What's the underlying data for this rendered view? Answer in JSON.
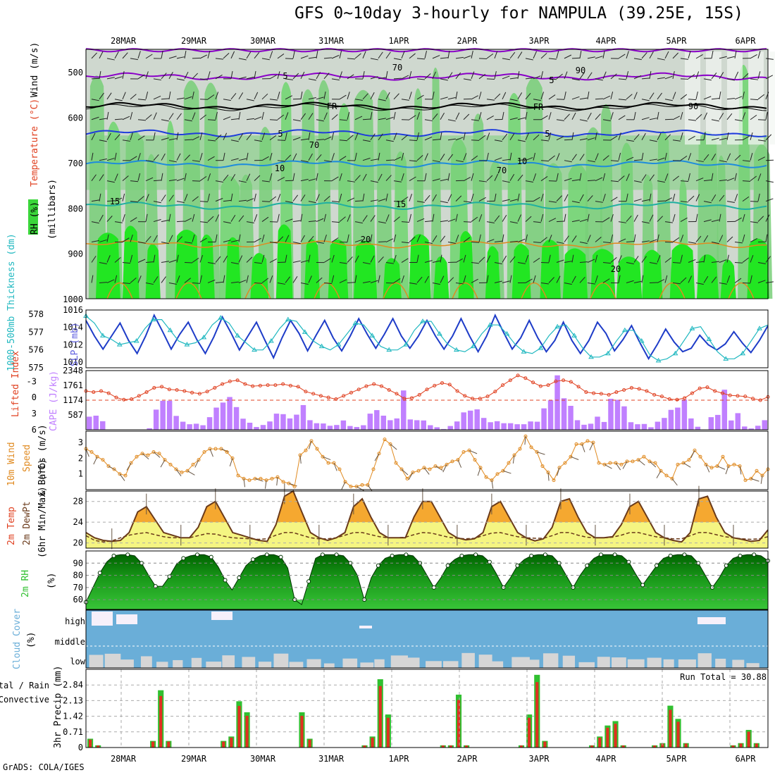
{
  "title": "GFS 0~10day 3-hourly for NAMPULA (39.25E, 15S)",
  "credit": "GrADS: COLA/IGES",
  "chart_data": {
    "type": "meteogram",
    "dates": [
      "28MAR",
      "29MAR",
      "30MAR",
      "31MAR",
      "1APR",
      "2APR",
      "3APR",
      "4APR",
      "5APR",
      "6APR"
    ],
    "colors": {
      "purple": "#8a00c8",
      "blue": "#1e3cdc",
      "lightblue": "#1e8cdc",
      "teal": "#20b0a0",
      "orange": "#e08a20",
      "red": "#e04020",
      "cyan": "#20b8c0",
      "darkblue": "#1e3cc8",
      "magenta": "#c080ff",
      "green": "#30c030",
      "cloud": "#6aaed8",
      "rain": "#e03020",
      "precip": "#30c030"
    },
    "panels": [
      {
        "name": "upper-air",
        "type": "contour",
        "ylabels": {
          "rh": "RH (%)",
          "temperature": "Temperature (°C)",
          "wind": "Wind (m/s)",
          "units": "(millibars)"
        },
        "yticks": [
          500,
          600,
          700,
          800,
          900,
          1000
        ],
        "contour_labels": [
          {
            "text": "5",
            "level": 508
          },
          {
            "text": "5",
            "level": 520
          },
          {
            "text": "FR",
            "level": 577
          },
          {
            "text": "FR",
            "level": 578
          },
          {
            "text": "5",
            "level": 633
          },
          {
            "text": "5",
            "level": 635
          },
          {
            "text": "10",
            "level": 708
          },
          {
            "text": "10",
            "level": 699
          },
          {
            "text": "15",
            "level": 790
          },
          {
            "text": "15",
            "level": 796
          },
          {
            "text": "20",
            "level": 870
          },
          {
            "text": "20",
            "level": 920
          },
          {
            "text": "70",
            "level": 491
          },
          {
            "text": "70",
            "level": 664
          },
          {
            "text": "90",
            "level": 499
          },
          {
            "text": "90",
            "level": 582
          },
          {
            "text": "70",
            "level": 717
          }
        ]
      },
      {
        "name": "slp-thickness",
        "type": "line",
        "ylabels": {
          "thickness": "1000-500mb Thickness (dm)",
          "slp": "SLP (mb)"
        },
        "thickness_ticks": [
          575,
          576,
          577,
          578
        ],
        "slp_ticks": [
          1010,
          1012,
          1014,
          1016
        ],
        "slp": [
          1014.8,
          1013,
          1011.5,
          1013,
          1014.5,
          1012.5,
          1011,
          1013,
          1015.4,
          1013.5,
          1011.5,
          1013.2,
          1014.6,
          1012.6,
          1011,
          1012.9,
          1015.2,
          1013.4,
          1011.4,
          1013,
          1014.6,
          1012.5,
          1010.5,
          1012.8,
          1014.8,
          1013.3,
          1011.3,
          1013.1,
          1014.8,
          1012.8,
          1011.3,
          1013,
          1015,
          1013.2,
          1011.6,
          1013.2,
          1015,
          1013,
          1011.6,
          1013,
          1014.8,
          1013,
          1011.5,
          1013,
          1015,
          1013,
          1011.2,
          1013,
          1015.4,
          1013.4,
          1011.5,
          1012.8,
          1014.8,
          1012.8,
          1011.2,
          1012.5,
          1014.6,
          1012.5,
          1011,
          1012.5,
          1014.6,
          1013.3,
          1011.3,
          1012.6,
          1014.2,
          1012.2,
          1010.4,
          1012,
          1013.8,
          1012.3,
          1011.2,
          1011.6,
          1013.1,
          1012,
          1011.4,
          1012.1,
          1013.5,
          1012.2,
          1011.1,
          1012.5,
          1014.2
        ],
        "thickness": [
          577.9,
          577.5,
          576.8,
          576.6,
          576.3,
          576.4,
          576.5,
          577.2,
          577.7,
          577.7,
          577.1,
          576.5,
          576.3,
          576.4,
          576.7,
          577.4,
          577.8,
          577.5,
          576.8,
          576.4,
          576,
          576,
          576.5,
          577.2,
          577.7,
          577.6,
          577,
          576.5,
          576.2,
          576,
          576.3,
          576.9,
          577.5,
          577.4,
          576.8,
          576.2,
          576,
          576,
          576.3,
          577.1,
          577.6,
          577.6,
          576.9,
          576.3,
          576,
          575.9,
          576.2,
          576.9,
          577.4,
          577.4,
          576.9,
          576.3,
          575.9,
          575.8,
          576.1,
          576.8,
          577.3,
          577.4,
          576.8,
          576.1,
          575.6,
          575.6,
          575.8,
          576.5,
          577.1,
          577.1,
          576.5,
          575.7,
          575.4,
          575.5,
          575.8,
          576.5,
          577.2,
          577.3,
          576.6,
          575.9,
          575.5,
          575.5,
          575.8,
          576.5,
          577.2,
          577.4
        ]
      },
      {
        "name": "stability",
        "type": "bar+line",
        "ylabels": {
          "li": "Lifted Index",
          "cape": "CAPE (J/kg)"
        },
        "li_ticks": [
          "-3",
          "0",
          "3",
          "6"
        ],
        "cape_ticks": [
          587,
          1174,
          1761,
          2348
        ],
        "li": [
          -1.2,
          -1,
          -1.2,
          -0.8,
          0,
          0.4,
          0.3,
          -0.3,
          -1,
          -1.8,
          -2,
          -1.5,
          -1.4,
          -1.2,
          -0.9,
          -0.7,
          -1.1,
          -1.8,
          -2.5,
          -3,
          -3.2,
          -2.5,
          -2.1,
          -2.2,
          -2.3,
          -2.3,
          -2.5,
          -2.2,
          -2,
          -1.1,
          -0.7,
          -0.3,
          0,
          0.3,
          -0.3,
          -0.9,
          -1.5,
          -2.1,
          -2.5,
          -2.1,
          -1.4,
          -0.7,
          0.2,
          0.1,
          -0.5,
          -1.5,
          -2.2,
          -2.7,
          -2.4,
          -1.2,
          -0.3,
          0.2,
          0.2,
          -0.2,
          -1.1,
          -2.3,
          -3.2,
          -4.1,
          -3.6,
          -2.8,
          -2.1,
          -2.3,
          -3,
          -3.2,
          -2.9,
          -2,
          -1,
          -0.8,
          -0.7,
          -0.5,
          -1,
          -1.4,
          -1.8,
          -1.6,
          -1.2,
          -0.5,
          -0.2,
          0.3,
          0.4,
          0.1,
          -0.8,
          -1.7,
          -1.9,
          -1.2,
          -0.8,
          -0.4,
          -0.3,
          -0.2,
          0.2,
          0.5,
          -0.1
        ],
        "cape": [
          520,
          560,
          340,
          0,
          0,
          0,
          0,
          0,
          0,
          60,
          800,
          1150,
          1150,
          550,
          320,
          220,
          240,
          180,
          500,
          880,
          1080,
          1300,
          900,
          440,
          280,
          110,
          190,
          330,
          640,
          620,
          450,
          600,
          980,
          380,
          260,
          250,
          160,
          190,
          370,
          150,
          110,
          180,
          640,
          780,
          560,
          380,
          450,
          1560,
          410,
          380,
          370,
          180,
          100,
          30,
          150,
          330,
          690,
          760,
          810,
          470,
          300,
          340,
          260,
          260,
          220,
          220,
          330,
          320,
          850,
          1170,
          2160,
          1250,
          950,
          380,
          200,
          240,
          520,
          310,
          1230,
          1190,
          930,
          300,
          220,
          230,
          100,
          320,
          470,
          790,
          880,
          1200,
          450,
          120,
          0,
          500,
          590,
          1590,
          370,
          660,
          130,
          50,
          160,
          380
        ],
        "threshold": 1174
      },
      {
        "name": "wind",
        "type": "line",
        "ylabels": {
          "wind": "10m Wind Speed & Barbs (m/s)"
        },
        "ticks": [
          1,
          2,
          3
        ],
        "values": [
          2.6,
          2.4,
          2.1,
          1.9,
          1.5,
          1.3,
          1,
          0.9,
          1.7,
          2.1,
          2.3,
          2.2,
          2.4,
          2.3,
          1.9,
          1.6,
          1.3,
          1.1,
          1.2,
          1.6,
          1.9,
          2.4,
          2.6,
          2.6,
          2.6,
          2.4,
          2,
          0.9,
          0.7,
          0.6,
          0.7,
          0.7,
          0.6,
          0.7,
          0.8,
          0.5,
          0.4,
          0.2,
          2.2,
          2.5,
          3.1,
          2.6,
          2.1,
          1.7,
          1.7,
          1.3,
          0.5,
          0.2,
          0.2,
          0.3,
          0.3,
          1.3,
          2.3,
          3.2,
          2.9,
          1.7,
          1.3,
          0.7,
          1.1,
          1.2,
          1.4,
          1.3,
          1.5,
          1.4,
          1.6,
          1.8,
          1.9,
          2.4,
          2.5,
          1.9,
          1.4,
          0.8,
          0.6,
          1,
          1.2,
          1.7,
          2.2,
          2.6,
          3.4,
          2.7,
          2.4,
          1.5,
          1.1,
          0.6,
          1.4,
          1.7,
          2.1,
          2.9,
          2.9,
          3.1,
          3,
          1.7,
          1.6,
          1.7,
          1.7,
          1.6,
          1.8,
          1.8,
          1.9,
          2.1,
          1.8,
          1.7,
          1.2,
          0.9,
          0.7,
          1.6,
          1.7,
          1.9,
          2.5,
          2.1,
          1.6,
          1.4,
          1.5,
          2.1,
          1.5,
          1.6,
          1.5,
          0.6,
          0.7,
          1.2,
          0.9,
          1.3
        ]
      },
      {
        "name": "temperature",
        "type": "area",
        "ylabels": {
          "temp": "2m Temp",
          "dewpt": "2m DewPt",
          "minmax": "(6hr Min/Max) (°C)"
        },
        "ticks": [
          20,
          24,
          28
        ],
        "temp": [
          22,
          21,
          20.5,
          20.3,
          20.5,
          22,
          26,
          27,
          24.5,
          22,
          21.5,
          21,
          21,
          23,
          27,
          28,
          25,
          22,
          21.5,
          21,
          20.5,
          20.3,
          23.5,
          29,
          30,
          26,
          22,
          21,
          20.5,
          21,
          22,
          27,
          28.5,
          25,
          22,
          21,
          21,
          21,
          25,
          28,
          28,
          25,
          22,
          21,
          20.6,
          20.8,
          22,
          27,
          28,
          25,
          22,
          21,
          20.4,
          20.8,
          23,
          28,
          28.5,
          25,
          22,
          21,
          21,
          21.2,
          23.5,
          27,
          28,
          25,
          22,
          21,
          20.5,
          20.2,
          22,
          28.5,
          29,
          25,
          22,
          21,
          20.7,
          20.3,
          20.5,
          22.5
        ],
        "dewpt": [
          21.4,
          20.5,
          20.2,
          20.4,
          21,
          21.5,
          21.8,
          22,
          21.6,
          21.2,
          21,
          21,
          21,
          21.4,
          21.8,
          21.7,
          21.3,
          21,
          20.9,
          20.8,
          20.7,
          20.8,
          21.5,
          22,
          22,
          21.5,
          21,
          20.8,
          20.8,
          21,
          21.5,
          22,
          22,
          21.6,
          21.2,
          21,
          21,
          21.1,
          21.6,
          22,
          21.9,
          21.5,
          21.1,
          20.9,
          20.8,
          20.9,
          21.4,
          21.9,
          22,
          21.6,
          21.2,
          21,
          20.9,
          20.9,
          21.4,
          22,
          22,
          21.5,
          21.1,
          21,
          21,
          21.1,
          21.5,
          22,
          22,
          21.6,
          21.2,
          21,
          20.8,
          20.8,
          21.4,
          22,
          22,
          21.6,
          21.2,
          21,
          20.8,
          20.7,
          20.8,
          21.2
        ]
      },
      {
        "name": "humidity",
        "type": "area",
        "ylabels": {
          "rh": "2m RH (%)"
        },
        "ticks": [
          60,
          70,
          80,
          90
        ],
        "values": [
          58,
          70,
          82,
          91,
          96,
          97,
          97,
          96,
          90,
          80,
          71,
          71,
          79,
          89,
          94,
          96,
          97,
          97,
          95,
          87,
          76,
          68,
          78,
          88,
          93,
          96,
          97,
          97,
          95,
          86,
          60,
          56,
          75,
          94,
          97,
          97,
          97,
          96,
          90,
          80,
          60,
          78,
          88,
          94,
          96,
          97,
          97,
          96,
          90,
          80,
          70,
          78,
          88,
          93,
          96,
          97,
          97,
          96,
          91,
          81,
          70,
          78,
          88,
          93,
          96,
          97,
          97,
          96,
          90,
          80,
          70,
          80,
          88,
          94,
          97,
          97,
          97,
          96,
          91,
          81,
          72,
          80,
          88,
          94,
          96,
          97,
          97,
          96,
          90,
          80,
          70,
          78,
          88,
          94,
          96,
          97,
          97,
          96,
          92
        ]
      },
      {
        "name": "clouds",
        "type": "stacked-area",
        "ylabels": {
          "cover": "Cloud Cover (%)"
        },
        "levels": [
          "high",
          "middle",
          "low"
        ]
      },
      {
        "name": "precip",
        "type": "bar",
        "ylabels": {
          "precip": "3hr Precip (mm)",
          "legend_total": "Total / Rain",
          "legend_conv": "Convective"
        },
        "ticks": [
          "0",
          "0.71",
          "1.42",
          "2.13",
          "2.84"
        ],
        "run_total": "Run Total = 30.88",
        "total": [
          0.4,
          0.1,
          0,
          0,
          0,
          0,
          0,
          0,
          0.3,
          2.6,
          0.3,
          0,
          0,
          0,
          0,
          0,
          0,
          0.3,
          0.5,
          2.1,
          1.6,
          0,
          0,
          0,
          0,
          0,
          0,
          1.6,
          0.4,
          0,
          0,
          0,
          0,
          0,
          0,
          0.1,
          0.5,
          3.1,
          1.5,
          0,
          0,
          0,
          0,
          0,
          0,
          0.1,
          0.1,
          2.4,
          0.1,
          0,
          0,
          0,
          0,
          0,
          0,
          0.1,
          1.5,
          3.3,
          0.3,
          0,
          0,
          0,
          0,
          0,
          0.1,
          0.5,
          1.0,
          1.2,
          0.1,
          0,
          0,
          0,
          0.1,
          0.2,
          1.9,
          1.3,
          0.2,
          0,
          0,
          0,
          0,
          0,
          0.1,
          0.2,
          0.8,
          0.2,
          0
        ]
      }
    ]
  }
}
